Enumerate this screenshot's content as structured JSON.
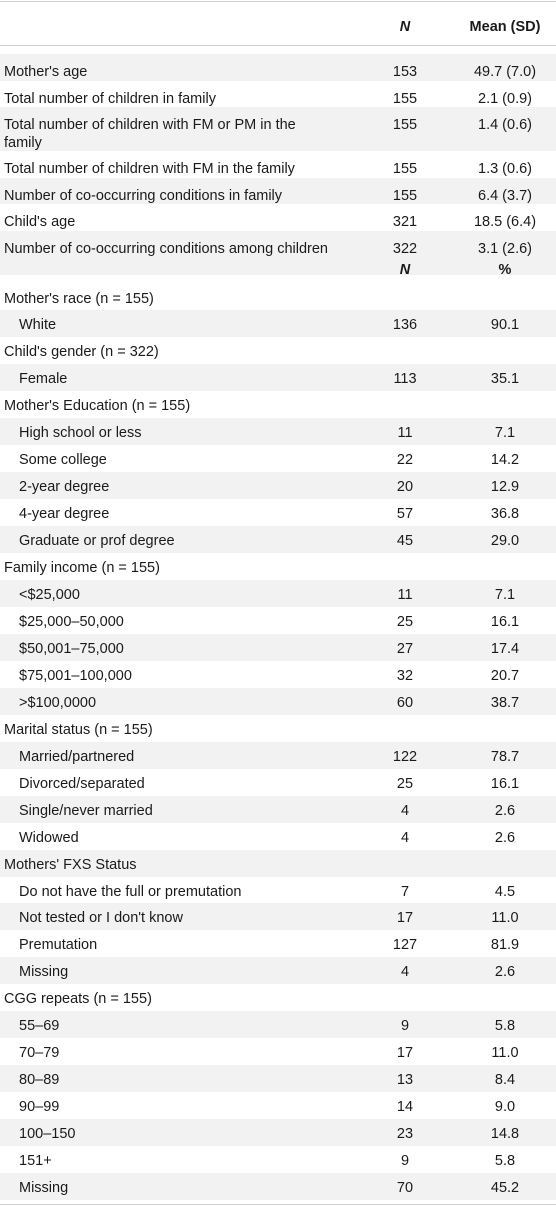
{
  "header": {
    "n_label": "N",
    "mean_label": "Mean (SD)"
  },
  "continuous_rows": [
    {
      "label": "Mother's age",
      "n": "153",
      "value": "49.7 (7.0)"
    },
    {
      "label": "Total number of children in family",
      "n": "155",
      "value": "2.1 (0.9)"
    },
    {
      "label": "Total number of children with FM or PM in the family",
      "n": "155",
      "value": "1.4 (0.6)"
    },
    {
      "label": "Total number of children with FM in the family",
      "n": "155",
      "value": "1.3 (0.6)"
    },
    {
      "label": "Number of co-occurring conditions in family",
      "n": "155",
      "value": "6.4 (3.7)"
    },
    {
      "label": "Child's age",
      "n": "321",
      "value": "18.5 (6.4)"
    },
    {
      "label": "Number of co-occurring conditions among children",
      "n": "322",
      "value": "3.1 (2.6)"
    }
  ],
  "subheader": {
    "n_label": "N",
    "pct_label": "%"
  },
  "categorical_rows": [
    {
      "type": "group",
      "label": "Mother's race",
      "n_note": "n = 155"
    },
    {
      "type": "item",
      "label": "White",
      "n": "136",
      "value": "90.1"
    },
    {
      "type": "group",
      "label": "Child's gender",
      "n_note": "n = 322"
    },
    {
      "type": "item",
      "label": "Female",
      "n": "113",
      "value": "35.1"
    },
    {
      "type": "group",
      "label": "Mother's Education",
      "n_note": "n = 155"
    },
    {
      "type": "item",
      "label": "High school or less",
      "n": "11",
      "value": "7.1"
    },
    {
      "type": "item",
      "label": "Some college",
      "n": "22",
      "value": "14.2"
    },
    {
      "type": "item",
      "label": "2-year degree",
      "n": "20",
      "value": "12.9"
    },
    {
      "type": "item",
      "label": "4-year degree",
      "n": "57",
      "value": "36.8"
    },
    {
      "type": "item",
      "label": "Graduate or prof degree",
      "n": "45",
      "value": "29.0"
    },
    {
      "type": "group",
      "label": "Family income",
      "n_note": "n = 155"
    },
    {
      "type": "item",
      "label": "<$25,000",
      "n": "11",
      "value": "7.1"
    },
    {
      "type": "item",
      "label": "$25,000–50,000",
      "n": "25",
      "value": "16.1"
    },
    {
      "type": "item",
      "label": "$50,001–75,000",
      "n": "27",
      "value": "17.4"
    },
    {
      "type": "item",
      "label": "$75,001–100,000",
      "n": "32",
      "value": "20.7"
    },
    {
      "type": "item",
      "label": ">$100,0000",
      "n": "60",
      "value": "38.7"
    },
    {
      "type": "group",
      "label": "Marital status",
      "n_note": "n = 155"
    },
    {
      "type": "item",
      "label": "Married/partnered",
      "n": "122",
      "value": "78.7"
    },
    {
      "type": "item",
      "label": "Divorced/separated",
      "n": "25",
      "value": "16.1"
    },
    {
      "type": "item",
      "label": "Single/never married",
      "n": "4",
      "value": "2.6"
    },
    {
      "type": "item",
      "label": "Widowed",
      "n": "4",
      "value": "2.6"
    },
    {
      "type": "group",
      "label": "Mothers' FXS Status",
      "n_note": ""
    },
    {
      "type": "item",
      "label": "Do not have the full or premutation",
      "n": "7",
      "value": "4.5"
    },
    {
      "type": "item",
      "label": "Not tested or I don't know",
      "n": "17",
      "value": "11.0"
    },
    {
      "type": "item",
      "label": "Premutation",
      "n": "127",
      "value": "81.9"
    },
    {
      "type": "item",
      "label": "Missing",
      "n": "4",
      "value": "2.6"
    },
    {
      "type": "group",
      "label": "CGG repeats",
      "n_note": "n = 155"
    },
    {
      "type": "item",
      "label": "55–69",
      "n": "9",
      "value": "5.8"
    },
    {
      "type": "item",
      "label": "70–79",
      "n": "17",
      "value": "11.0"
    },
    {
      "type": "item",
      "label": "80–89",
      "n": "13",
      "value": "8.4"
    },
    {
      "type": "item",
      "label": "90–99",
      "n": "14",
      "value": "9.0"
    },
    {
      "type": "item",
      "label": "100–150",
      "n": "23",
      "value": "14.8"
    },
    {
      "type": "item",
      "label": "151+",
      "n": "9",
      "value": "5.8"
    },
    {
      "type": "item",
      "label": "Missing",
      "n": "70",
      "value": "45.2"
    }
  ]
}
